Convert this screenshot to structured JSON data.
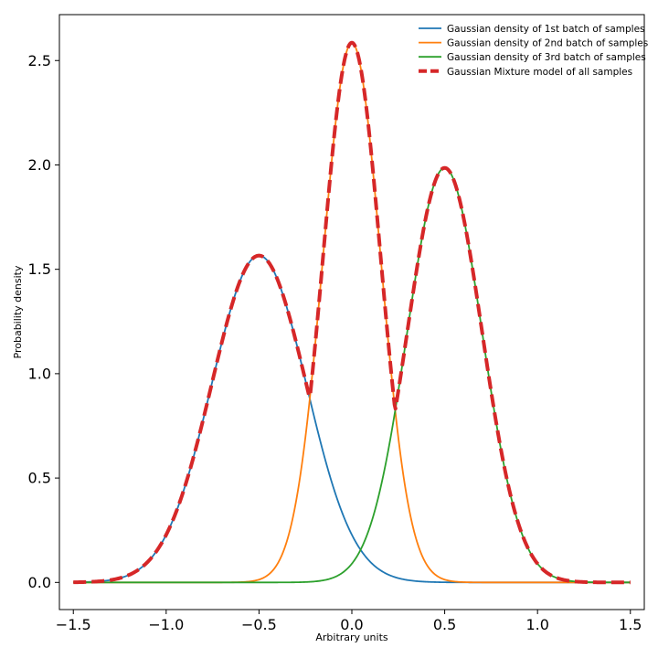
{
  "chart_data": {
    "type": "line",
    "title": "",
    "xlabel": "Arbitrary units",
    "ylabel": "Probability density",
    "xlim": [
      -1.575,
      1.575
    ],
    "ylim": [
      -0.13,
      2.72
    ],
    "xticks": [
      -1.5,
      -1.0,
      -0.5,
      0.0,
      0.5,
      1.0,
      1.5
    ],
    "xtick_labels": [
      "−1.5",
      "−1.0",
      "−0.5",
      "0.0",
      "0.5",
      "1.0",
      "1.5"
    ],
    "yticks": [
      0.0,
      0.5,
      1.0,
      1.5,
      2.0,
      2.5
    ],
    "ytick_labels": [
      "0.0",
      "0.5",
      "1.0",
      "1.5",
      "2.0",
      "2.5"
    ],
    "grid": false,
    "legend_position": "top-right",
    "x_range": [
      -1.5,
      1.5
    ],
    "series": [
      {
        "name": "Gaussian density of 1st batch of samples",
        "color": "#1f77b4",
        "style": "solid",
        "kind": "gaussian",
        "mu": -0.5,
        "sigma": 0.2548,
        "domain": [
          -1.5,
          1.5
        ]
      },
      {
        "name": "Gaussian density of 2nd batch of samples",
        "color": "#ff7f0e",
        "style": "solid",
        "kind": "gaussian",
        "mu": 0.0,
        "sigma": 0.1543,
        "domain": [
          -1.5,
          1.5
        ]
      },
      {
        "name": "Gaussian density of 3rd batch of samples",
        "color": "#2ca02c",
        "style": "solid",
        "kind": "gaussian",
        "mu": 0.5,
        "sigma": 0.2009,
        "domain": [
          -1.5,
          1.5
        ]
      },
      {
        "name": "Gaussian Mixture model of all samples",
        "color": "#d62728",
        "style": "dashed",
        "kind": "max-envelope",
        "of": [
          0,
          1,
          2
        ],
        "domain": [
          -1.5,
          1.5
        ]
      }
    ]
  }
}
